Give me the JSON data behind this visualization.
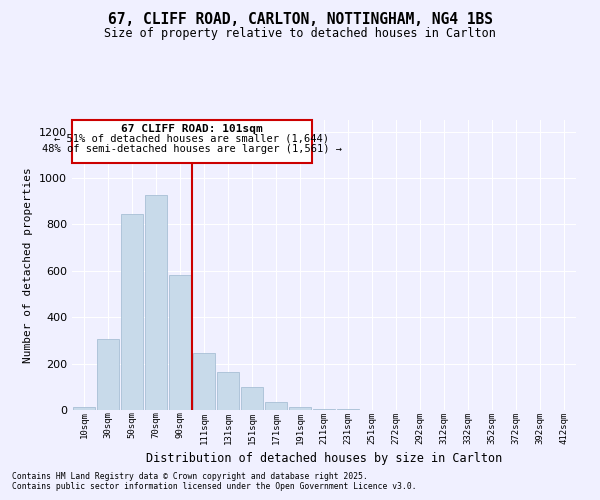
{
  "title": "67, CLIFF ROAD, CARLTON, NOTTINGHAM, NG4 1BS",
  "subtitle": "Size of property relative to detached houses in Carlton",
  "xlabel": "Distribution of detached houses by size in Carlton",
  "ylabel": "Number of detached properties",
  "bar_labels": [
    "10sqm",
    "30sqm",
    "50sqm",
    "70sqm",
    "90sqm",
    "111sqm",
    "131sqm",
    "151sqm",
    "171sqm",
    "191sqm",
    "211sqm",
    "231sqm",
    "251sqm",
    "272sqm",
    "292sqm",
    "312sqm",
    "332sqm",
    "352sqm",
    "372sqm",
    "392sqm",
    "412sqm"
  ],
  "bar_values": [
    15,
    305,
    845,
    925,
    580,
    245,
    163,
    100,
    35,
    15,
    5,
    3,
    2,
    2,
    1,
    0,
    0,
    0,
    0,
    0,
    0
  ],
  "bar_color": "#c8daea",
  "bar_edgecolor": "#a8c0d6",
  "ylim": [
    0,
    1250
  ],
  "yticks": [
    0,
    200,
    400,
    600,
    800,
    1000,
    1200
  ],
  "vline_color": "#cc0000",
  "vline_index": 5,
  "annotation_title": "67 CLIFF ROAD: 101sqm",
  "annotation_line1": "← 51% of detached houses are smaller (1,644)",
  "annotation_line2": "48% of semi-detached houses are larger (1,561) →",
  "annotation_box_color": "#cc0000",
  "footer_line1": "Contains HM Land Registry data © Crown copyright and database right 2025.",
  "footer_line2": "Contains public sector information licensed under the Open Government Licence v3.0.",
  "background_color": "#f0f0ff"
}
